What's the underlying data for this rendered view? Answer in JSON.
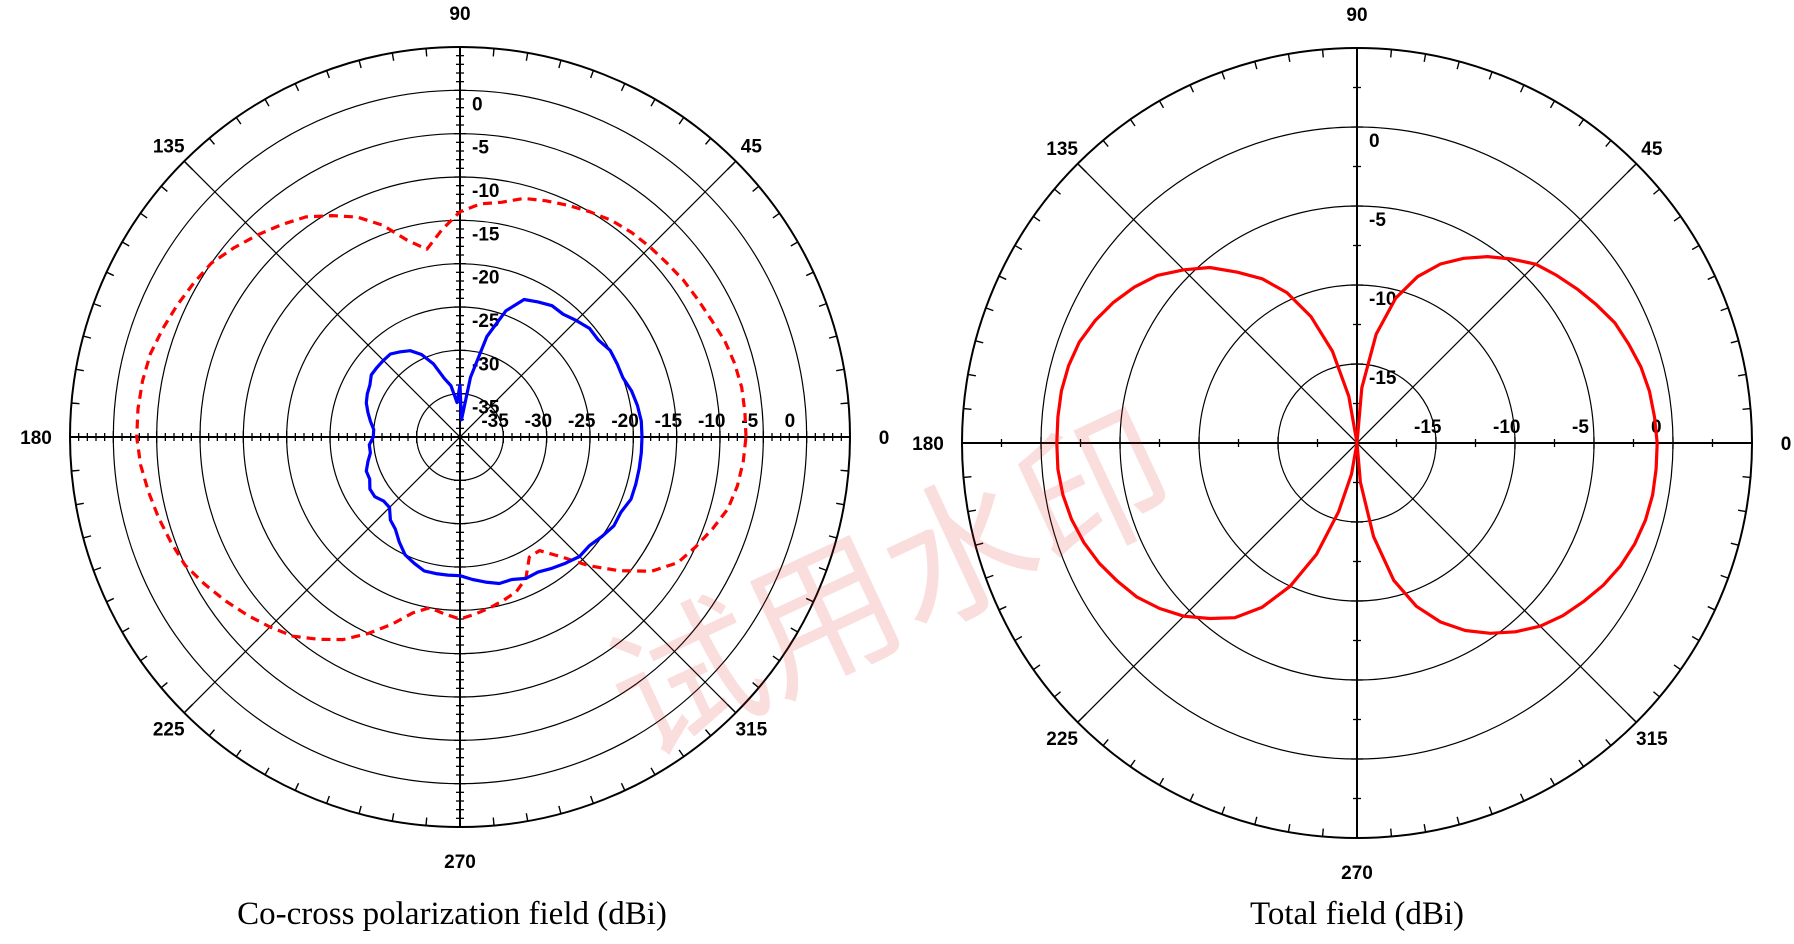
{
  "watermark": "试用水印",
  "chart_data": [
    {
      "type": "polar-line",
      "title": "Co-cross polarization field (dBi)",
      "angular_labels": [
        "0",
        "45",
        "90",
        "135",
        "180",
        "225",
        "270",
        "315"
      ],
      "radial_range_dBi": [
        -40,
        5
      ],
      "radial_ticks": [
        -35,
        -30,
        -25,
        -20,
        -15,
        -10,
        -5,
        0
      ],
      "radial_tick_labels": [
        "-35",
        "-30",
        "-25",
        "-20",
        "-15",
        "-10",
        "-5",
        "0"
      ],
      "grid": true,
      "series": [
        {
          "color": "#ff0000",
          "dash": "dashed",
          "angles_deg": [
            0,
            5,
            10,
            15,
            20,
            25,
            30,
            35,
            40,
            45,
            50,
            55,
            60,
            65,
            70,
            75,
            80,
            85,
            90,
            95,
            100,
            105,
            110,
            115,
            120,
            125,
            130,
            135,
            140,
            145,
            150,
            155,
            160,
            165,
            170,
            175,
            180,
            185,
            190,
            195,
            200,
            205,
            210,
            215,
            220,
            225,
            230,
            235,
            240,
            245,
            250,
            255,
            260,
            265,
            270,
            275,
            280,
            285,
            290,
            295,
            300,
            305,
            310,
            315,
            320,
            325,
            330,
            335,
            340,
            345,
            350,
            355,
            360
          ],
          "values_dBi": [
            -7.0,
            -7.0,
            -7.0,
            -7.2,
            -7.5,
            -8.0,
            -8.3,
            -8.5,
            -8.8,
            -9.0,
            -9.2,
            -9.5,
            -10.0,
            -10.5,
            -11.0,
            -11.5,
            -12.5,
            -13.0,
            -14.0,
            -16.0,
            -18.0,
            -16.5,
            -14.0,
            -12.0,
            -10.5,
            -9.0,
            -8.0,
            -7.0,
            -6.0,
            -5.0,
            -4.5,
            -4.0,
            -3.5,
            -3.0,
            -2.8,
            -2.7,
            -2.7,
            -3.0,
            -3.5,
            -4.0,
            -4.5,
            -5.0,
            -6.0,
            -7.0,
            -8.0,
            -9.0,
            -10.0,
            -11.5,
            -13.0,
            -15.0,
            -17.0,
            -19.0,
            -20.0,
            -19.5,
            -19.0,
            -19.5,
            -20.0,
            -20.5,
            -21.0,
            -22.0,
            -24.0,
            -24.0,
            -22.0,
            -19.0,
            -16.0,
            -13.0,
            -11.0,
            -10.0,
            -9.0,
            -8.0,
            -7.5,
            -7.2,
            -7.0
          ]
        },
        {
          "color": "#0000ff",
          "dash": "solid",
          "angles_deg": [
            0,
            5,
            10,
            15,
            20,
            25,
            30,
            35,
            40,
            45,
            50,
            55,
            60,
            65,
            70,
            75,
            80,
            85,
            90,
            95,
            100,
            105,
            110,
            115,
            120,
            125,
            130,
            135,
            140,
            145,
            150,
            155,
            160,
            165,
            170,
            175,
            180,
            185,
            190,
            195,
            200,
            205,
            210,
            215,
            220,
            225,
            230,
            235,
            240,
            245,
            250,
            255,
            260,
            265,
            270,
            275,
            280,
            285,
            290,
            295,
            300,
            305,
            310,
            315,
            320,
            325,
            330,
            335,
            340,
            345,
            350,
            355,
            360
          ],
          "values_dBi": [
            -19.0,
            -19.0,
            -19.2,
            -19.5,
            -20.0,
            -20.0,
            -20.0,
            -20.5,
            -20.5,
            -21.0,
            -21.5,
            -21.5,
            -22.0,
            -22.5,
            -24.5,
            -28.0,
            -33.0,
            -38.0,
            -34.0,
            -36.0,
            -34.0,
            -33.0,
            -31.0,
            -29.5,
            -28.5,
            -28.0,
            -27.5,
            -27.5,
            -27.5,
            -27.5,
            -28.0,
            -28.2,
            -28.5,
            -29.0,
            -29.5,
            -30.0,
            -30.0,
            -29.5,
            -29.5,
            -29.0,
            -28.5,
            -28.5,
            -28.0,
            -28.0,
            -28.5,
            -28.5,
            -27.5,
            -27.0,
            -26.0,
            -25.0,
            -24.5,
            -24.0,
            -24.0,
            -24.0,
            -24.0,
            -23.5,
            -23.0,
            -22.5,
            -22.5,
            -22.0,
            -22.0,
            -21.5,
            -21.0,
            -20.5,
            -20.5,
            -20.0,
            -19.5,
            -19.5,
            -19.0,
            -19.0,
            -19.0,
            -19.0,
            -19.0
          ]
        }
      ]
    },
    {
      "type": "polar-line",
      "title": "Total field (dBi)",
      "angular_labels": [
        "0",
        "45",
        "90",
        "135",
        "180",
        "225",
        "270",
        "315"
      ],
      "radial_range_dBi": [
        -20,
        5
      ],
      "radial_ticks": [
        -15,
        -10,
        -5,
        0
      ],
      "radial_tick_labels": [
        "-15",
        "-10",
        "-5",
        "0"
      ],
      "grid": true,
      "series": [
        {
          "color": "#ff0000",
          "dash": "solid",
          "angles_deg": [
            0,
            5,
            10,
            15,
            20,
            25,
            30,
            35,
            40,
            45,
            50,
            55,
            60,
            65,
            70,
            75,
            80,
            85,
            90,
            95,
            100,
            105,
            110,
            115,
            120,
            125,
            130,
            135,
            140,
            145,
            150,
            155,
            160,
            165,
            170,
            175,
            180,
            185,
            190,
            195,
            200,
            205,
            210,
            215,
            220,
            225,
            230,
            235,
            240,
            245,
            250,
            255,
            260,
            265,
            270,
            275,
            280,
            285,
            290,
            295,
            300,
            305,
            310,
            315,
            320,
            325,
            330,
            335,
            340,
            345,
            350,
            355,
            360
          ],
          "values_dBi": [
            -1.0,
            -1.1,
            -1.2,
            -1.4,
            -1.7,
            -2.0,
            -2.5,
            -3.0,
            -3.5,
            -4.0,
            -4.8,
            -5.6,
            -6.5,
            -7.5,
            -8.8,
            -10.5,
            -13.0,
            -16.5,
            -20.0,
            -20.0,
            -17.0,
            -14.0,
            -11.5,
            -9.5,
            -8.0,
            -6.8,
            -5.5,
            -4.5,
            -3.5,
            -2.8,
            -2.2,
            -1.7,
            -1.3,
            -1.1,
            -1.0,
            -1.0,
            -1.0,
            -1.0,
            -1.1,
            -1.3,
            -1.6,
            -2.0,
            -2.5,
            -3.0,
            -3.7,
            -4.5,
            -5.5,
            -6.5,
            -8.0,
            -10.0,
            -12.5,
            -15.5,
            -18.0,
            -20.0,
            -20.0,
            -17.5,
            -14.0,
            -11.0,
            -9.0,
            -7.5,
            -6.3,
            -5.3,
            -4.4,
            -3.6,
            -3.0,
            -2.5,
            -2.0,
            -1.6,
            -1.3,
            -1.1,
            -1.0,
            -1.0,
            -1.0
          ]
        }
      ]
    }
  ]
}
